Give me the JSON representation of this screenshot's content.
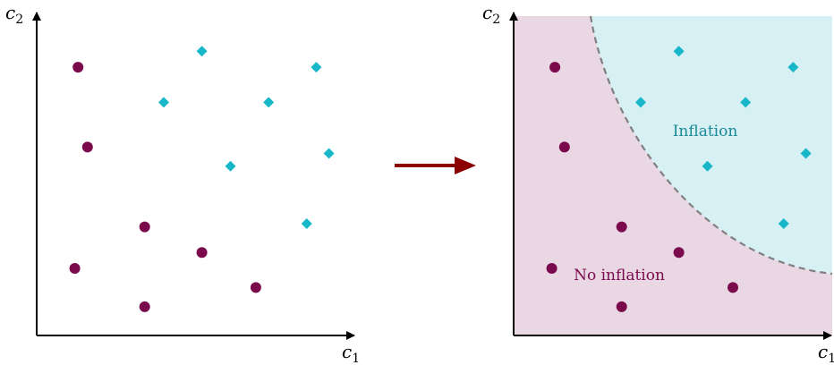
{
  "colors": {
    "no_inflation": "#7a0a4c",
    "inflation": "#17b7c9",
    "no_inflation_fill": "#ead7e4",
    "inflation_fill": "#d6f0f4",
    "arrow": "#8b0000",
    "boundary": "#808080"
  },
  "axes": {
    "x_label": "c",
    "x_sub": "1",
    "y_label": "c",
    "y_sub": "2"
  },
  "regions": {
    "inflation_label": "Inflation",
    "no_inflation_label": "No inflation"
  },
  "chart_data": {
    "type": "scatter",
    "series": [
      {
        "name": "No inflation",
        "marker": "circle",
        "x": [
          0.13,
          0.16,
          0.34,
          0.12,
          0.52,
          0.69,
          0.34
        ],
        "y": [
          0.84,
          0.59,
          0.34,
          0.21,
          0.26,
          0.15,
          0.09
        ]
      },
      {
        "name": "Inflation",
        "marker": "diamond",
        "x": [
          0.52,
          0.88,
          0.4,
          0.73,
          0.61,
          0.92,
          0.85
        ],
        "y": [
          0.89,
          0.84,
          0.73,
          0.73,
          0.53,
          0.57,
          0.35
        ]
      }
    ],
    "xlim": [
      0,
      1
    ],
    "ylim": [
      0,
      1
    ]
  }
}
